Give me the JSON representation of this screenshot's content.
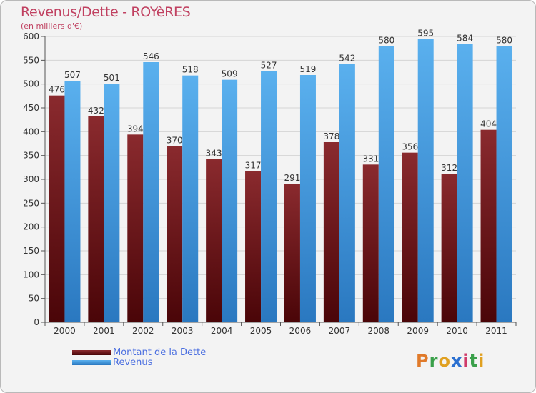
{
  "chart_data": {
    "type": "bar",
    "title": "Revenus/Dette - ROYèRES",
    "subtitle": "(en milliers d'€)",
    "categories": [
      "2000",
      "2001",
      "2002",
      "2003",
      "2004",
      "2005",
      "2006",
      "2007",
      "2008",
      "2009",
      "2010",
      "2011"
    ],
    "series": [
      {
        "name": "Montant de la Dette",
        "color": "#7a1f23",
        "values": [
          476,
          432,
          394,
          370,
          343,
          317,
          291,
          378,
          331,
          356,
          312,
          404
        ]
      },
      {
        "name": "Revenus",
        "color": "#4a9fe0",
        "values": [
          507,
          501,
          546,
          518,
          509,
          527,
          519,
          542,
          580,
          595,
          584,
          580
        ]
      }
    ],
    "ylim": [
      0,
      600
    ],
    "yticks": [
      0,
      50,
      100,
      150,
      200,
      250,
      300,
      350,
      400,
      450,
      500,
      550,
      600
    ],
    "grid": true,
    "legend_position": "bottom-left"
  },
  "logo": {
    "letters": [
      "P",
      "r",
      "o",
      "x",
      "i",
      "t",
      "i"
    ],
    "colors": [
      "#e07a2a",
      "#3aa04a",
      "#e0a020",
      "#2a6fd0",
      "#d03a6a",
      "#3aa04a",
      "#e0a020"
    ]
  }
}
